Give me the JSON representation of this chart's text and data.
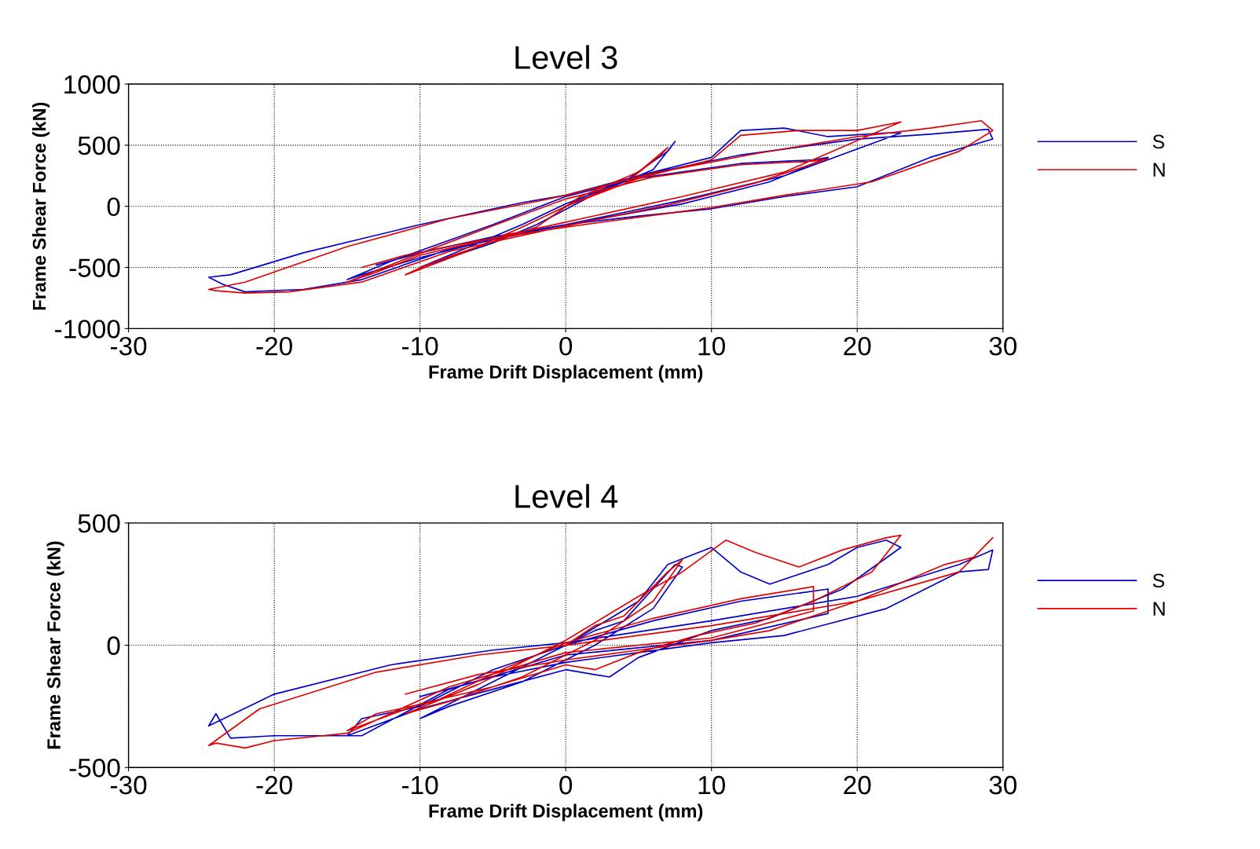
{
  "chart_data": [
    {
      "type": "line",
      "title": "Level 3",
      "xlabel": "Frame Drift Displacement (mm)",
      "ylabel": "Frame Shear Force (kN)",
      "xlim": [
        -30,
        30
      ],
      "xticks": [
        -30,
        -20,
        -10,
        0,
        10,
        20,
        30
      ],
      "ylim": [
        -1000,
        1000
      ],
      "yticks": [
        -1000,
        -500,
        0,
        500,
        1000
      ],
      "grid": true,
      "legend": "right",
      "line_style": "solid",
      "marker": "none",
      "series": [
        {
          "name": "S",
          "color": "#0000c8",
          "x": [
            0,
            2,
            4,
            7,
            7.5,
            6,
            2,
            -2,
            -5,
            -8,
            -10,
            -7,
            -3,
            0,
            5,
            10,
            12,
            15,
            18,
            22,
            23,
            15,
            8,
            0,
            -5,
            -10,
            -14,
            -15,
            -12,
            -5,
            0,
            5,
            12,
            17,
            18,
            14,
            8,
            0,
            -8,
            -14,
            -18,
            -22,
            -23.5,
            -24.5,
            -23,
            -18,
            -10,
            -3,
            0,
            5,
            12,
            20,
            25,
            29,
            29.3,
            25,
            20,
            15,
            10,
            5,
            0,
            -5,
            -10,
            -13
          ],
          "values": [
            0,
            120,
            200,
            450,
            530,
            300,
            100,
            -150,
            -300,
            -420,
            -500,
            -350,
            -150,
            20,
            250,
            400,
            620,
            640,
            570,
            600,
            600,
            250,
            50,
            -150,
            -270,
            -420,
            -560,
            -600,
            -450,
            -150,
            80,
            230,
            350,
            380,
            400,
            200,
            20,
            -150,
            -350,
            -600,
            -680,
            -700,
            -640,
            -580,
            -560,
            -380,
            -150,
            30,
            90,
            250,
            420,
            550,
            590,
            630,
            550,
            400,
            160,
            80,
            -20,
            -80,
            -150,
            -250,
            -380,
            -480
          ]
        },
        {
          "name": "N",
          "color": "#e00000",
          "x": [
            0,
            2,
            4,
            6.5,
            7,
            5,
            1,
            -2,
            -6,
            -9,
            -11,
            -7,
            -3,
            0,
            5,
            10,
            12,
            16,
            20,
            23,
            22,
            15,
            8,
            0,
            -5,
            -10,
            -13,
            -15,
            -11,
            -5,
            0,
            6,
            12,
            17,
            18,
            13,
            7,
            0,
            -8,
            -14,
            -19,
            -22,
            -24,
            -24.5,
            -22,
            -15,
            -8,
            -2,
            0,
            6,
            13,
            20,
            25,
            28.5,
            29.3,
            27,
            21,
            15,
            10,
            5,
            0,
            -6,
            -11,
            -14
          ],
          "values": [
            0,
            100,
            180,
            420,
            480,
            280,
            80,
            -170,
            -330,
            -450,
            -560,
            -380,
            -170,
            0,
            230,
            380,
            580,
            620,
            620,
            690,
            640,
            280,
            80,
            -130,
            -260,
            -400,
            -540,
            -620,
            -430,
            -160,
            60,
            240,
            340,
            370,
            390,
            190,
            10,
            -160,
            -370,
            -620,
            -700,
            -710,
            -690,
            -680,
            -620,
            -330,
            -100,
            40,
            90,
            270,
            430,
            570,
            640,
            700,
            620,
            450,
            200,
            90,
            -10,
            -90,
            -170,
            -280,
            -400,
            -500
          ]
        }
      ]
    },
    {
      "type": "line",
      "title": "Level 4",
      "xlabel": "Frame Drift Displacement (mm)",
      "ylabel": "Frame Shear Force (kN)",
      "xlim": [
        -30,
        30
      ],
      "xticks": [
        -30,
        -20,
        -10,
        0,
        10,
        20,
        30
      ],
      "ylim": [
        -500,
        500
      ],
      "yticks": [
        -500,
        0,
        500
      ],
      "grid": true,
      "legend": "right",
      "line_style": "solid",
      "marker": "none",
      "series": [
        {
          "name": "S",
          "color": "#0000c8",
          "x": [
            0,
            2,
            4,
            7.5,
            8,
            6,
            2,
            -3,
            -8,
            -10,
            -6,
            0,
            5,
            7,
            10,
            12,
            14,
            18,
            20,
            22,
            23,
            19,
            14,
            10,
            5,
            3,
            0,
            -5,
            -10,
            -15,
            -14,
            -10,
            -5,
            0,
            6,
            12,
            18,
            18,
            10,
            0,
            -8,
            -14,
            -20,
            -23,
            -24,
            -24.5,
            -20,
            -12,
            -5,
            0,
            10,
            20,
            27,
            29.3,
            29,
            27,
            22,
            15,
            10,
            5,
            0,
            -5,
            -10
          ],
          "values": [
            0,
            60,
            100,
            330,
            320,
            150,
            0,
            -150,
            -250,
            -300,
            -180,
            0,
            180,
            330,
            400,
            300,
            250,
            330,
            400,
            430,
            400,
            230,
            110,
            60,
            -50,
            -130,
            -100,
            -180,
            -260,
            -370,
            -300,
            -250,
            -100,
            0,
            100,
            180,
            230,
            130,
            20,
            -40,
            -180,
            -370,
            -370,
            -380,
            -280,
            -330,
            -200,
            -80,
            -20,
            10,
            100,
            200,
            330,
            390,
            310,
            300,
            150,
            40,
            10,
            -30,
            -70,
            -130,
            -210
          ]
        },
        {
          "name": "N",
          "color": "#e00000",
          "x": [
            0,
            2,
            4,
            7,
            8,
            6,
            2,
            -3,
            -8,
            -11,
            -6,
            0,
            5,
            8,
            11,
            13,
            16,
            19,
            22,
            23,
            21,
            17,
            13,
            9,
            5,
            2,
            0,
            -5,
            -10,
            -15,
            -13,
            -9,
            -4,
            0,
            6,
            12,
            17,
            17,
            10,
            0,
            -8,
            -15,
            -20,
            -22,
            -24,
            -24.5,
            -21,
            -13,
            -6,
            0,
            10,
            20,
            27,
            29.3,
            28,
            26,
            20,
            14,
            10,
            5,
            0,
            -6,
            -11
          ],
          "values": [
            0,
            80,
            120,
            300,
            350,
            180,
            20,
            -130,
            -230,
            -280,
            -160,
            20,
            200,
            300,
            430,
            380,
            320,
            390,
            440,
            450,
            300,
            180,
            90,
            40,
            -30,
            -100,
            -80,
            -170,
            -240,
            -350,
            -280,
            -230,
            -90,
            10,
            110,
            190,
            240,
            140,
            30,
            -30,
            -170,
            -360,
            -390,
            -420,
            -400,
            -410,
            -260,
            -110,
            -40,
            0,
            80,
            180,
            300,
            440,
            360,
            330,
            180,
            60,
            20,
            -20,
            -60,
            -120,
            -200
          ]
        }
      ]
    }
  ]
}
